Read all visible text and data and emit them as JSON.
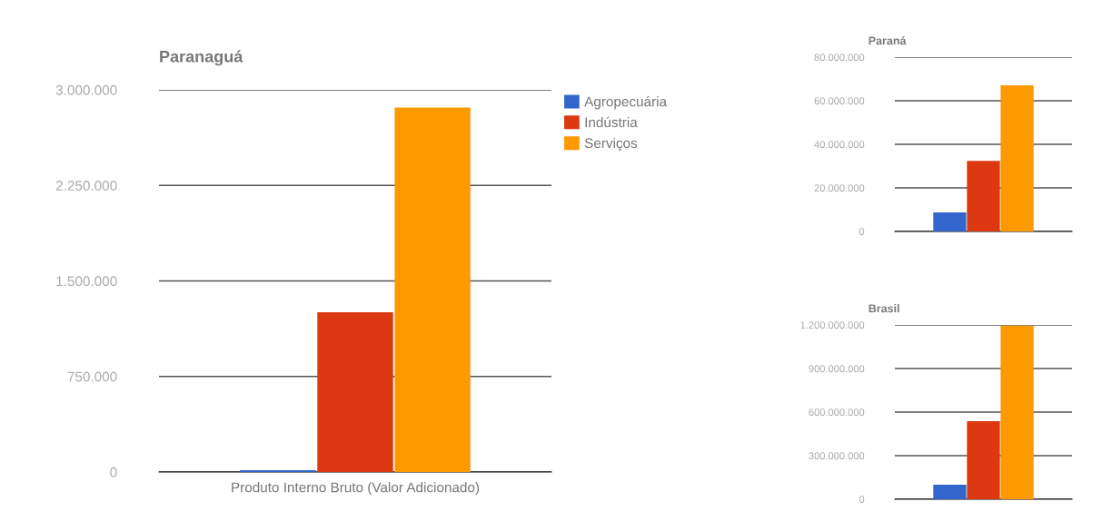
{
  "chart_data": [
    {
      "type": "bar",
      "title": "Paranaguá",
      "categories": [
        "Produto Interno Bruto (Valor Adicionado)"
      ],
      "ylim": [
        0,
        3000000
      ],
      "yticks": [
        {
          "value": 0,
          "label": "0"
        },
        {
          "value": 750000,
          "label": "750.000"
        },
        {
          "value": 1500000,
          "label": "1.500.000"
        },
        {
          "value": 2250000,
          "label": "2.250.000"
        },
        {
          "value": 3000000,
          "label": "3.000.000"
        }
      ],
      "grid": "y",
      "legend": "top right",
      "series": [
        {
          "name": "Agropecuária",
          "color": "#3366cc",
          "values": [
            15000
          ]
        },
        {
          "name": "Indústria",
          "color": "#dc3912",
          "values": [
            1254000
          ]
        },
        {
          "name": "Serviços",
          "color": "#ff9900",
          "values": [
            2861000
          ]
        }
      ]
    },
    {
      "type": "bar",
      "title": "Paraná",
      "categories": [
        null
      ],
      "ylim": [
        0,
        80000000
      ],
      "yticks": [
        {
          "value": 0,
          "label": "0"
        },
        {
          "value": 20000000,
          "label": "20.000.000"
        },
        {
          "value": 40000000,
          "label": "40.000.000"
        },
        {
          "value": 60000000,
          "label": "60.000.000"
        },
        {
          "value": 80000000,
          "label": "80.000.000"
        }
      ],
      "grid": "y",
      "series": [
        {
          "color": "#3366cc",
          "values": [
            8800000
          ]
        },
        {
          "color": "#dc3912",
          "values": [
            32400000
          ]
        },
        {
          "color": "#ff9900",
          "values": [
            67100000
          ]
        }
      ]
    },
    {
      "type": "bar",
      "title": "Brasil",
      "categories": [
        null
      ],
      "ylim": [
        0,
        1200000000
      ],
      "yticks": [
        {
          "value": 0,
          "label": "0"
        },
        {
          "value": 300000000,
          "label": "300.000.000"
        },
        {
          "value": 600000000,
          "label": "600.000.000"
        },
        {
          "value": 900000000,
          "label": "900.000.000"
        },
        {
          "value": 1200000000,
          "label": "1.200.000.000"
        }
      ],
      "grid": "y",
      "series": [
        {
          "color": "#3366cc",
          "values": [
            100000000
          ]
        },
        {
          "color": "#dc3912",
          "values": [
            537000000
          ]
        },
        {
          "color": "#ff9900",
          "values": [
            1196000000
          ]
        }
      ]
    }
  ]
}
